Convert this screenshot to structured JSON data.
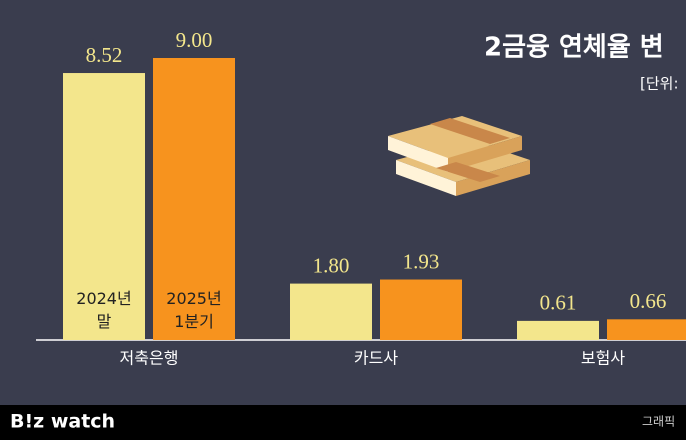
{
  "chart_data": {
    "type": "bar",
    "title": "2금융 연체율 변",
    "unit_note": "[단위:",
    "categories": [
      "저축은행",
      "카드사",
      "보험사"
    ],
    "series": [
      {
        "name": "2024년 말",
        "color": "#f3e68c",
        "values": [
          8.52,
          1.8,
          0.61
        ],
        "value_labels": [
          "8.52",
          "1.80",
          "0.61"
        ]
      },
      {
        "name": "2025년 1분기",
        "color": "#f7931e",
        "values": [
          9.0,
          1.93,
          0.66
        ],
        "value_labels": [
          "9.00",
          "1.93",
          "0.66"
        ]
      }
    ],
    "ylim": [
      0,
      9
    ]
  },
  "footer": {
    "logo": "B!z watch",
    "credit": "그래픽"
  }
}
